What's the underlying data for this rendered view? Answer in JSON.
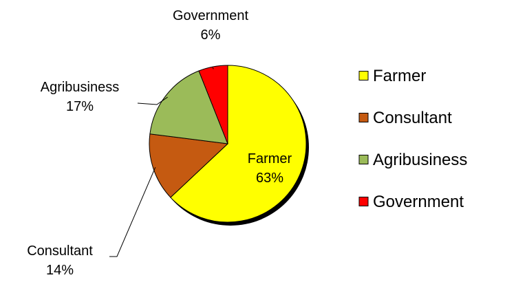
{
  "chart_data": {
    "type": "pie",
    "categories": [
      "Farmer",
      "Consultant",
      "Agribusiness",
      "Government"
    ],
    "values": [
      63,
      14,
      17,
      6
    ],
    "value_labels": [
      "63%",
      "14%",
      "17%",
      "6%"
    ],
    "colors": [
      "#ffff00",
      "#c55a11",
      "#9bbb59",
      "#ff0000"
    ],
    "start_angle_deg": 0,
    "direction": "clockwise",
    "legend": "right",
    "title": ""
  }
}
